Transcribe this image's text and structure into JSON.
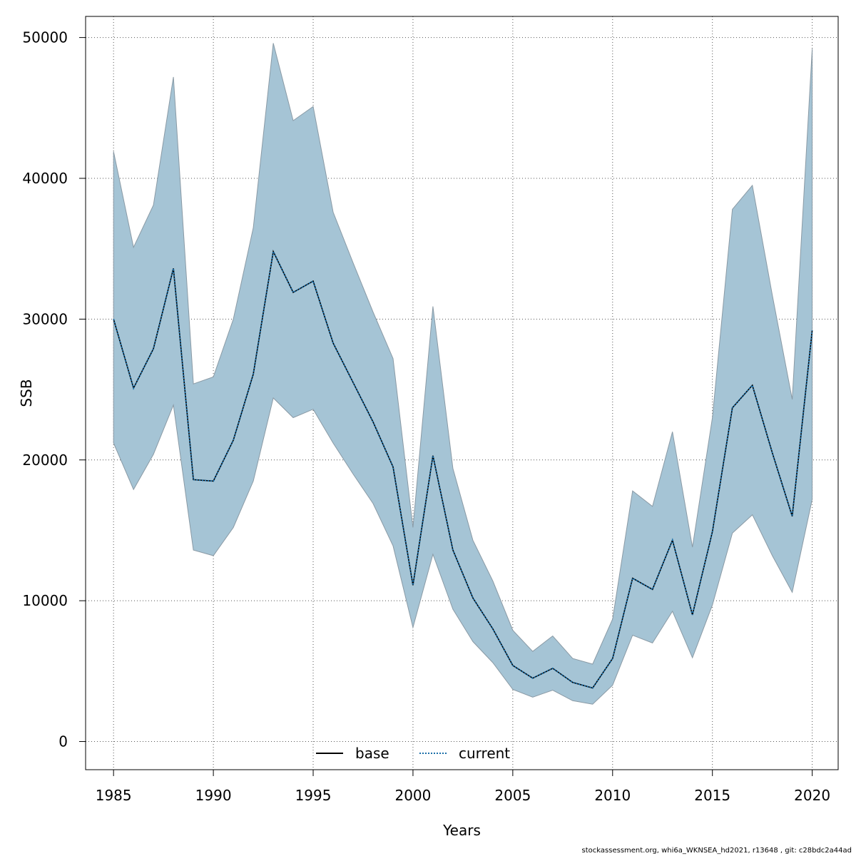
{
  "chart_data": {
    "type": "area",
    "title": "",
    "xlabel": "Years",
    "ylabel": "SSB",
    "xlim": [
      1983.6,
      2021.3
    ],
    "ylim": [
      -2000,
      51500
    ],
    "xticks": [
      1985,
      1990,
      1995,
      2000,
      2005,
      2010,
      2015,
      2020
    ],
    "yticks": [
      0,
      10000,
      20000,
      30000,
      40000,
      50000
    ],
    "grid": true,
    "legend_position": "bottom-center",
    "x": [
      1985,
      1986,
      1987,
      1988,
      1989,
      1990,
      1991,
      1992,
      1993,
      1994,
      1995,
      1996,
      1997,
      1998,
      1999,
      2000,
      2001,
      2002,
      2003,
      2004,
      2005,
      2006,
      2007,
      2008,
      2009,
      2010,
      2011,
      2012,
      2013,
      2014,
      2015,
      2016,
      2017,
      2018,
      2019,
      2020
    ],
    "band": {
      "color": "#a5c4d5",
      "edge_color": "#8a9aa5",
      "upper": [
        41900,
        35100,
        38100,
        47200,
        25400,
        25900,
        30000,
        36500,
        49600,
        44100,
        45100,
        37600,
        34000,
        30500,
        27200,
        15200,
        30900,
        19400,
        14300,
        11400,
        7900,
        6400,
        7500,
        5900,
        5500,
        8700,
        17800,
        16700,
        22000,
        13800,
        23000,
        37800,
        39500,
        31700,
        24300,
        49200
      ],
      "lower": [
        21200,
        17900,
        20400,
        23900,
        13600,
        13200,
        15200,
        18500,
        24400,
        23000,
        23600,
        21200,
        19000,
        16900,
        13900,
        8100,
        13300,
        9400,
        7100,
        5600,
        3700,
        3150,
        3650,
        2900,
        2650,
        4000,
        7550,
        7000,
        9250,
        5950,
        9700,
        14800,
        16100,
        13200,
        10600,
        17200
      ]
    },
    "series": [
      {
        "name": "base",
        "color": "#000000",
        "style": "solid",
        "values": [
          30000,
          25100,
          27900,
          33600,
          18600,
          18500,
          21400,
          26100,
          34800,
          31900,
          32700,
          28300,
          25500,
          22700,
          19500,
          11100,
          20300,
          13600,
          10200,
          8000,
          5400,
          4500,
          5200,
          4200,
          3800,
          5900,
          11600,
          10800,
          14300,
          9000,
          14900,
          23700,
          25300,
          20500,
          16000,
          29200
        ]
      },
      {
        "name": "current",
        "color": "#1a6ea8",
        "style": "dotted",
        "values": [
          30000,
          25100,
          27900,
          33600,
          18600,
          18500,
          21400,
          26100,
          34800,
          31900,
          32700,
          28300,
          25500,
          22700,
          19500,
          11100,
          20300,
          13600,
          10200,
          8000,
          5400,
          4500,
          5200,
          4200,
          3800,
          5900,
          11600,
          10800,
          14300,
          9000,
          14900,
          23700,
          25300,
          20500,
          16000,
          29200
        ]
      }
    ]
  },
  "footer": {
    "note": "stockassessment.org, whi6a_WKNSEA_hd2021, r13648 , git: c28bdc2a44ad"
  }
}
